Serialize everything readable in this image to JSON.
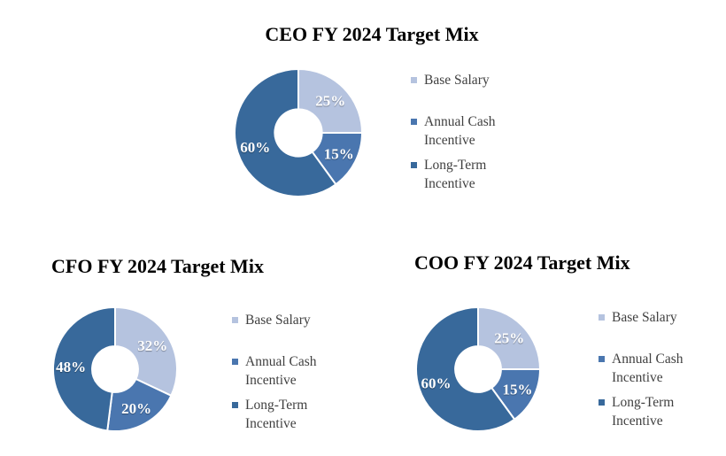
{
  "page": {
    "background": "#ffffff"
  },
  "colors": {
    "base_salary": "#b5c3df",
    "annual_cash_incentive": "#4a76af",
    "long_term_incentive": "#38699b",
    "slice_label_text": "#ffffff",
    "legend_text": "#404040",
    "title_text": "#000000"
  },
  "legend": {
    "items": [
      {
        "name": "base-salary",
        "label": "Base Salary",
        "color": "#b5c3df"
      },
      {
        "name": "annual-cash-incentive",
        "label": "Annual Cash Incentive",
        "color": "#4a76af"
      },
      {
        "name": "long-term-incentive",
        "label": "Long-Term Incentive",
        "color": "#38699b"
      }
    ]
  },
  "chart_data": [
    {
      "type": "pie",
      "subtype": "donut",
      "title": "CEO FY 2024 Target Mix",
      "categories": [
        "Base Salary",
        "Annual Cash Incentive",
        "Long-Term Incentive"
      ],
      "values": [
        25,
        15,
        60
      ],
      "data_labels": [
        "25%",
        "15%",
        "60%"
      ],
      "colors": [
        "#b5c3df",
        "#4a76af",
        "#38699b"
      ],
      "start_angle": 0,
      "direction": "clockwise",
      "hole_ratio": 0.37,
      "legend_position": "right",
      "legend_entries": [
        "Base Salary",
        "Annual Cash Incentive",
        "Long-Term Incentive"
      ]
    },
    {
      "type": "pie",
      "subtype": "donut",
      "title": "CFO FY 2024 Target Mix",
      "categories": [
        "Base Salary",
        "Annual Cash Incentive",
        "Long-Term Incentive"
      ],
      "values": [
        32,
        20,
        48
      ],
      "data_labels": [
        "32%",
        "20%",
        "48%"
      ],
      "colors": [
        "#b5c3df",
        "#4a76af",
        "#38699b"
      ],
      "start_angle": 0,
      "direction": "clockwise",
      "hole_ratio": 0.37,
      "legend_position": "right",
      "legend_entries": [
        "Base Salary",
        "Annual Cash Incentive",
        "Long-Term Incentive"
      ]
    },
    {
      "type": "pie",
      "subtype": "donut",
      "title": "COO FY 2024 Target Mix",
      "categories": [
        "Base Salary",
        "Annual Cash Incentive",
        "Long-Term Incentive"
      ],
      "values": [
        25,
        15,
        60
      ],
      "data_labels": [
        "25%",
        "15%",
        "60%"
      ],
      "colors": [
        "#b5c3df",
        "#4a76af",
        "#38699b"
      ],
      "start_angle": 0,
      "direction": "clockwise",
      "hole_ratio": 0.37,
      "legend_position": "right",
      "legend_entries": [
        "Base Salary",
        "Annual Cash Incentive",
        "Long-Term Incentive"
      ]
    }
  ]
}
